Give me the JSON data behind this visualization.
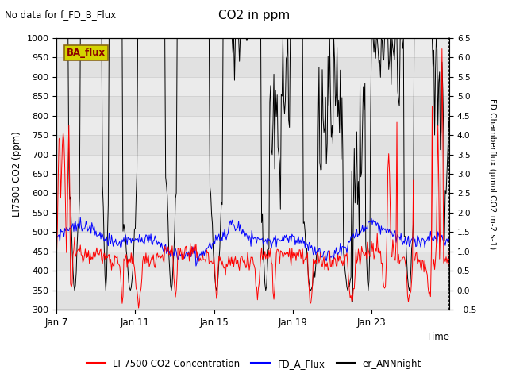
{
  "title": "CO2 in ppm",
  "subtitle": "No data for f_FD_B_Flux",
  "xlabel": "Time",
  "ylabel_left": "LI7500 CO2 (ppm)",
  "ylabel_right": "FD Chamberflux (μmol CO2 m-2 s-1)",
  "ylim_left": [
    300,
    1000
  ],
  "ylim_right": [
    -0.5,
    6.5
  ],
  "yticks_left": [
    300,
    350,
    400,
    450,
    500,
    550,
    600,
    650,
    700,
    750,
    800,
    850,
    900,
    950,
    1000
  ],
  "yticks_right": [
    -0.5,
    0.0,
    0.5,
    1.0,
    1.5,
    2.0,
    2.5,
    3.0,
    3.5,
    4.0,
    4.5,
    5.0,
    5.5,
    6.0,
    6.5
  ],
  "xtick_labels": [
    "Jan 7",
    "Jan 11",
    "Jan 15",
    "Jan 19",
    "Jan 23"
  ],
  "xtick_positions": [
    0,
    96,
    192,
    288,
    384
  ],
  "n_points": 480,
  "red_color": "#ff0000",
  "blue_color": "#0000ff",
  "black_color": "#000000",
  "legend_labels": [
    "LI-7500 CO2 Concentration",
    "FD_A_Flux",
    "er_ANNnight"
  ],
  "ba_flux_label": "BA_flux",
  "ba_flux_bg": "#d4d400",
  "ba_flux_fg": "#8B0000",
  "ba_flux_edge": "#8B6914",
  "grid_color": "#d0d0d0",
  "plot_bg": "#ebebeb",
  "figsize": [
    6.4,
    4.8
  ],
  "dpi": 100,
  "seed": 12345
}
